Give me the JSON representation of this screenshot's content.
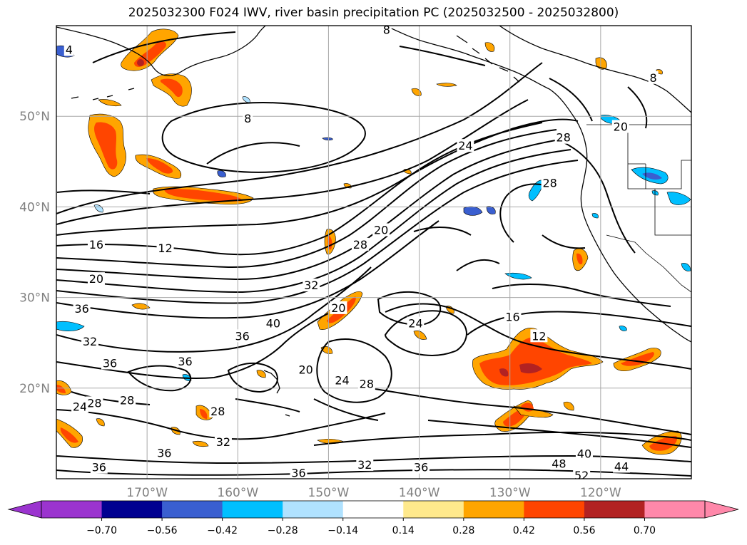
{
  "title": "2025032300 F024 IWV, river basin precipitation PC (2025032500 - 2025032800)",
  "map": {
    "lon_range": [
      -180,
      -110
    ],
    "lat_range": [
      10,
      60
    ],
    "lat_ticks": [
      {
        "lat": 50,
        "label": "50°N"
      },
      {
        "lat": 40,
        "label": "40°N"
      },
      {
        "lat": 30,
        "label": "30°N"
      },
      {
        "lat": 20,
        "label": "20°N"
      }
    ],
    "lon_ticks": [
      {
        "lon": -170,
        "label": "170°W"
      },
      {
        "lon": -160,
        "label": "160°W"
      },
      {
        "lon": -150,
        "label": "150°W"
      },
      {
        "lon": -140,
        "label": "140°W"
      },
      {
        "lon": -130,
        "label": "130°W"
      },
      {
        "lon": -120,
        "label": "120°W"
      }
    ],
    "gridlines": true,
    "contour_labels": [
      {
        "text": "8",
        "lon": -143.6,
        "lat": 59.5
      },
      {
        "text": "4",
        "lon": -178.6,
        "lat": 57.3
      },
      {
        "text": "8",
        "lon": -158.9,
        "lat": 49.7
      },
      {
        "text": "8",
        "lon": -114.2,
        "lat": 54.2
      },
      {
        "text": "24",
        "lon": -134.9,
        "lat": 46.7
      },
      {
        "text": "28",
        "lon": -124.1,
        "lat": 47.6
      },
      {
        "text": "20",
        "lon": -117.8,
        "lat": 48.8
      },
      {
        "text": "28",
        "lon": -125.6,
        "lat": 42.6
      },
      {
        "text": "16",
        "lon": -175.6,
        "lat": 35.8
      },
      {
        "text": "12",
        "lon": -168.0,
        "lat": 35.4
      },
      {
        "text": "20",
        "lon": -144.2,
        "lat": 37.4
      },
      {
        "text": "28",
        "lon": -146.5,
        "lat": 35.8
      },
      {
        "text": "20",
        "lon": -175.6,
        "lat": 32.0
      },
      {
        "text": "32",
        "lon": -151.9,
        "lat": 31.3
      },
      {
        "text": "20",
        "lon": -148.9,
        "lat": 28.8
      },
      {
        "text": "40",
        "lon": -156.1,
        "lat": 27.1
      },
      {
        "text": "36",
        "lon": -159.5,
        "lat": 25.7
      },
      {
        "text": "36",
        "lon": -177.2,
        "lat": 28.7
      },
      {
        "text": "32",
        "lon": -176.3,
        "lat": 25.1
      },
      {
        "text": "36",
        "lon": -174.1,
        "lat": 22.7
      },
      {
        "text": "36",
        "lon": -165.8,
        "lat": 22.9
      },
      {
        "text": "24",
        "lon": -140.4,
        "lat": 27.1
      },
      {
        "text": "16",
        "lon": -129.7,
        "lat": 27.8
      },
      {
        "text": "12",
        "lon": -126.8,
        "lat": 25.7
      },
      {
        "text": "20",
        "lon": -152.5,
        "lat": 22.0
      },
      {
        "text": "24",
        "lon": -148.5,
        "lat": 20.8
      },
      {
        "text": "28",
        "lon": -145.8,
        "lat": 20.4
      },
      {
        "text": "24",
        "lon": -177.4,
        "lat": 17.9
      },
      {
        "text": "28",
        "lon": -175.8,
        "lat": 18.3
      },
      {
        "text": "28",
        "lon": -172.2,
        "lat": 18.6
      },
      {
        "text": "28",
        "lon": -162.2,
        "lat": 17.4
      },
      {
        "text": "32",
        "lon": -161.6,
        "lat": 14.0
      },
      {
        "text": "36",
        "lon": -168.1,
        "lat": 12.8
      },
      {
        "text": "36",
        "lon": -175.3,
        "lat": 11.2
      },
      {
        "text": "36",
        "lon": -153.3,
        "lat": 10.6
      },
      {
        "text": "32",
        "lon": -146.0,
        "lat": 11.5
      },
      {
        "text": "36",
        "lon": -139.8,
        "lat": 11.2
      },
      {
        "text": "48",
        "lon": -124.6,
        "lat": 11.6
      },
      {
        "text": "40",
        "lon": -121.8,
        "lat": 12.7
      },
      {
        "text": "52",
        "lon": -122.1,
        "lat": 10.3
      },
      {
        "text": "44",
        "lon": -117.7,
        "lat": 11.3
      }
    ]
  },
  "colorbar": {
    "ticks": [
      "−0.70",
      "−0.56",
      "−0.42",
      "−0.28",
      "−0.14",
      "0.14",
      "0.28",
      "0.42",
      "0.56",
      "0.70"
    ],
    "colors": [
      "#9b34cf",
      "#000090",
      "#3a5fd0",
      "#00bfff",
      "#b0e2ff",
      "#ffffff",
      "#ffe98c",
      "#ffa500",
      "#ff4500",
      "#b22222",
      "#ff88aa"
    ],
    "under_color": "#9b34cf",
    "over_color": "#ff88aa"
  }
}
